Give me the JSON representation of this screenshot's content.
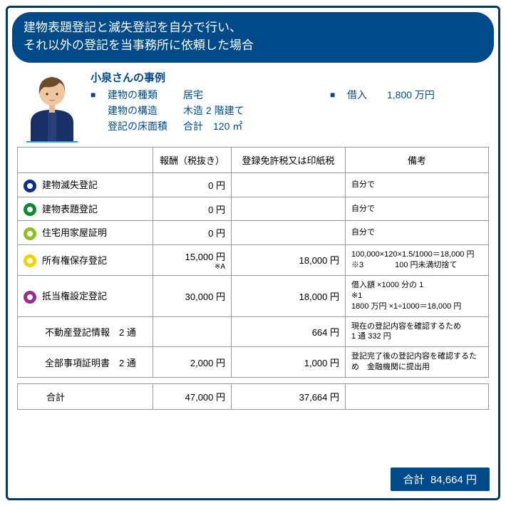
{
  "header": {
    "line1": "建物表題登記と滅失登記を自分で行い、",
    "line2": "それ以外の登記を当事務所に依頼した場合"
  },
  "case": {
    "title": "小泉さんの事例",
    "left": [
      {
        "sq": "■",
        "label": "建物の種類",
        "value": "居宅"
      },
      {
        "sq": "",
        "label": "建物の構造",
        "value": "木造 2 階建て"
      },
      {
        "sq": "",
        "label": "登記の床面積",
        "value": "合計　120 ㎡"
      }
    ],
    "right": {
      "sq": "■",
      "label": "借入",
      "value": "1,800 万円"
    }
  },
  "columns": {
    "c0": "",
    "c1": "報酬（税抜き）",
    "c2": "登録免許税又は印紙税",
    "c3": "備考"
  },
  "rows": [
    {
      "circle": "#0f2f8f",
      "name": "建物滅失登記",
      "fee": "0 円",
      "tax": "",
      "note": "自分で",
      "sub": ""
    },
    {
      "circle": "#0a8a2f",
      "name": "建物表題登記",
      "fee": "0 円",
      "tax": "",
      "note": "自分で",
      "sub": ""
    },
    {
      "circle": "#8fbf1f",
      "name": "住宅用家屋証明",
      "fee": "0 円",
      "tax": "",
      "note": "自分で",
      "sub": ""
    },
    {
      "circle": "#f0d400",
      "name": "所有権保存登記",
      "fee": "15,000 円",
      "sub": "※A",
      "tax": "18,000 円",
      "note": "100,000×120×1.5/1000＝18,000 円\n※3　　　　100 円未満切捨て"
    },
    {
      "circle": "#9b2d8f",
      "name": "抵当権設定登記",
      "fee": "30,000 円",
      "sub": "",
      "tax": "18,000 円",
      "note": "借入額 ×1000 分の 1\n※1\n1800 万円 ×1÷1000＝18,000 円"
    },
    {
      "circle": "",
      "name": "不動産登記情報　2 通",
      "fee": "",
      "sub": "",
      "tax": "664 円",
      "note": "現在の登記内容を確認するため\n1 通 332 円"
    },
    {
      "circle": "",
      "name": "全部事項証明書　2 通",
      "fee": "2,000 円",
      "sub": "",
      "tax": "1,000 円",
      "note": "登記完了後の登記内容を確認するため　金融機関に提出用"
    }
  ],
  "sum": {
    "label": "合計",
    "fee": "47,000 円",
    "tax": "37,664 円"
  },
  "total": {
    "label": "合計",
    "value": "84,664 円"
  }
}
